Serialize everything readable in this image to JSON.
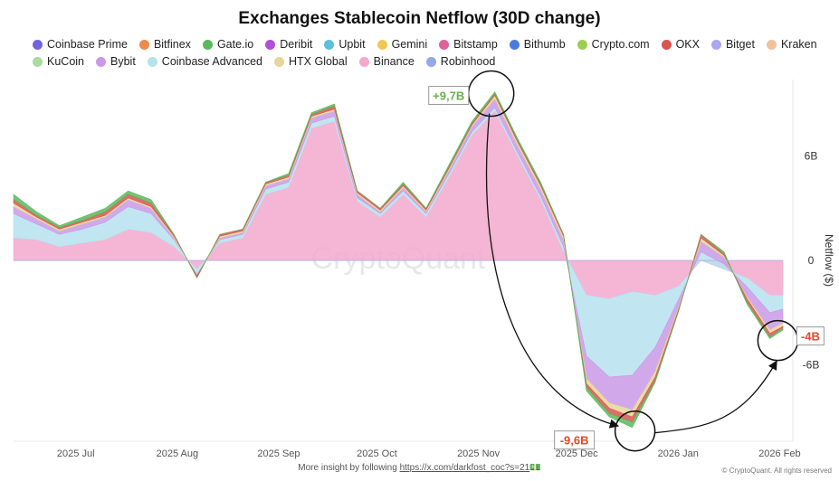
{
  "chart_data": {
    "type": "area",
    "stacked": true,
    "title": "Exchanges Stablecoin Netflow (30D change)",
    "ylabel": "Netflow ($)",
    "ylim": [
      -10.5,
      10.3
    ],
    "xlim": [
      "2025-06-12",
      "2026-02-02"
    ],
    "y_ticks": [
      {
        "value": 6,
        "label": "6B"
      },
      {
        "value": 0,
        "label": "0"
      },
      {
        "value": -6,
        "label": "-6B"
      }
    ],
    "x_ticks": [
      {
        "date": "2025-07-01",
        "label": "2025 Jul"
      },
      {
        "date": "2025-08-01",
        "label": "2025 Aug"
      },
      {
        "date": "2025-09-01",
        "label": "2025 Sep"
      },
      {
        "date": "2025-10-01",
        "label": "2025 Oct"
      },
      {
        "date": "2025-11-01",
        "label": "2025 Nov"
      },
      {
        "date": "2025-12-01",
        "label": "2025 Dec"
      },
      {
        "date": "2026-01-01",
        "label": "2026 Jan"
      },
      {
        "date": "2026-02-01",
        "label": "2026 Feb"
      }
    ],
    "grid": false,
    "legend_position": "top",
    "legend": [
      {
        "name": "Coinbase Prime",
        "color": "#6f63e0"
      },
      {
        "name": "Bitfinex",
        "color": "#ef8a4c"
      },
      {
        "name": "Gate.io",
        "color": "#5cb85c"
      },
      {
        "name": "Deribit",
        "color": "#b04fdc"
      },
      {
        "name": "Upbit",
        "color": "#5bc0de"
      },
      {
        "name": "Gemini",
        "color": "#f0c756"
      },
      {
        "name": "Bitstamp",
        "color": "#e0609a"
      },
      {
        "name": "Bithumb",
        "color": "#4b7be0"
      },
      {
        "name": "Crypto.com",
        "color": "#9ccc50"
      },
      {
        "name": "OKX",
        "color": "#d9534f"
      },
      {
        "name": "Bitget",
        "color": "#aaa6ef"
      },
      {
        "name": "Kraken",
        "color": "#f2c09a"
      },
      {
        "name": "KuCoin",
        "color": "#a8dca0"
      },
      {
        "name": "Bybit",
        "color": "#c99ae8"
      },
      {
        "name": "Coinbase Advanced",
        "color": "#b6e2ee"
      },
      {
        "name": "HTX Global",
        "color": "#e8d59a"
      },
      {
        "name": "Binance",
        "color": "#f2a9cc"
      },
      {
        "name": "Robinhood",
        "color": "#94a8e6"
      }
    ],
    "x": [
      "2025-06-12",
      "2025-06-19",
      "2025-06-26",
      "2025-07-03",
      "2025-07-10",
      "2025-07-17",
      "2025-07-24",
      "2025-07-31",
      "2025-08-07",
      "2025-08-14",
      "2025-08-21",
      "2025-08-28",
      "2025-09-04",
      "2025-09-11",
      "2025-09-18",
      "2025-09-25",
      "2025-10-02",
      "2025-10-09",
      "2025-10-16",
      "2025-10-23",
      "2025-10-30",
      "2025-11-06",
      "2025-11-13",
      "2025-11-20",
      "2025-11-27",
      "2025-12-04",
      "2025-12-11",
      "2025-12-18",
      "2025-12-25",
      "2026-01-01",
      "2026-01-08",
      "2026-01-15",
      "2026-01-22",
      "2026-01-29",
      "2026-02-02"
    ],
    "series": [
      {
        "name": "Binance",
        "color": "#f2a9cc",
        "values": [
          1.3,
          1.2,
          0.8,
          1.0,
          1.2,
          1.8,
          1.6,
          0.8,
          -0.5,
          1.0,
          1.3,
          3.8,
          4.2,
          7.6,
          8.0,
          3.4,
          2.5,
          3.8,
          2.5,
          4.8,
          7.2,
          8.6,
          6.0,
          3.5,
          0.5,
          -2.0,
          -2.2,
          -1.8,
          -2.0,
          -1.5,
          0.0,
          -0.5,
          -1.0,
          -2.0,
          -2.0
        ]
      },
      {
        "name": "Coinbase Advanced",
        "color": "#b6e2ee",
        "values": [
          1.4,
          0.9,
          0.7,
          0.8,
          1.0,
          1.3,
          1.1,
          0.4,
          -0.3,
          0.2,
          0.2,
          0.3,
          0.3,
          0.3,
          0.3,
          0.2,
          0.2,
          0.2,
          0.2,
          0.2,
          0.2,
          0.2,
          0.2,
          0.2,
          0.3,
          -3.5,
          -4.5,
          -4.8,
          -3.0,
          -0.8,
          0.5,
          0.3,
          -0.5,
          -1.0,
          -0.8
        ]
      },
      {
        "name": "Bybit",
        "color": "#c99ae8",
        "values": [
          0.4,
          0.3,
          0.2,
          0.3,
          0.3,
          0.4,
          0.3,
          0.1,
          -0.1,
          0.1,
          0.1,
          0.2,
          0.2,
          0.3,
          0.3,
          0.2,
          0.1,
          0.2,
          0.1,
          0.2,
          0.3,
          0.5,
          0.4,
          0.4,
          0.4,
          -1.3,
          -1.5,
          -2.0,
          -1.4,
          -0.5,
          0.6,
          0.4,
          -0.6,
          -1.0,
          -0.8
        ]
      },
      {
        "name": "HTX Global",
        "color": "#e8d59a",
        "values": [
          0.2,
          0.1,
          0.1,
          0.1,
          0.1,
          0.1,
          0.1,
          0.1,
          0,
          0.1,
          0.1,
          0.1,
          0.1,
          0.1,
          0.1,
          0.1,
          0.1,
          0.1,
          0.1,
          0.1,
          0.1,
          0.2,
          0.2,
          0.2,
          0.2,
          -0.3,
          -0.3,
          -0.4,
          -0.3,
          -0.1,
          0.2,
          0.1,
          -0.1,
          -0.2,
          -0.2
        ]
      },
      {
        "name": "OKX",
        "color": "#d9534f",
        "values": [
          0.2,
          0.1,
          0.1,
          0.1,
          0.2,
          0.2,
          0.2,
          0.1,
          -0.1,
          0.1,
          0.1,
          0.1,
          0.1,
          0.1,
          0.2,
          0.1,
          0.1,
          0.1,
          0.1,
          0.1,
          0.1,
          0.1,
          0.1,
          0.1,
          0.1,
          -0.2,
          -0.3,
          -0.3,
          -0.2,
          -0.1,
          0.2,
          0.1,
          -0.2,
          -0.2,
          -0.1
        ]
      },
      {
        "name": "Gate.io",
        "color": "#5cb85c",
        "values": [
          0.3,
          0.2,
          0.1,
          0.2,
          0.2,
          0.2,
          0.2,
          0,
          0,
          0,
          0,
          0,
          0.1,
          0.1,
          0.1,
          0,
          0,
          0.1,
          0,
          0.1,
          0.1,
          0.1,
          0.1,
          0.1,
          0,
          -0.2,
          -0.2,
          -0.3,
          -0.1,
          0,
          0,
          0.1,
          -0.1,
          -0.1,
          -0.1
        ]
      }
    ],
    "annotations": [
      {
        "text": "+9,7B",
        "date": "2025-11-06",
        "value": 9.7,
        "color": "#6ab04c"
      },
      {
        "text": "-9,6B",
        "date": "2025-12-18",
        "value": -9.6,
        "color": "#e8452c"
      },
      {
        "text": "-4B",
        "date": "2026-02-01",
        "value": -4.5,
        "color": "#e8452c"
      }
    ],
    "watermark": "CryptoQuant"
  },
  "footer": {
    "text": "More insight by following ",
    "link": "https://x.com/darkfost_coc?s=21",
    "emoji": "💵",
    "copyright": "© CryptoQuant. All rights reserved"
  }
}
